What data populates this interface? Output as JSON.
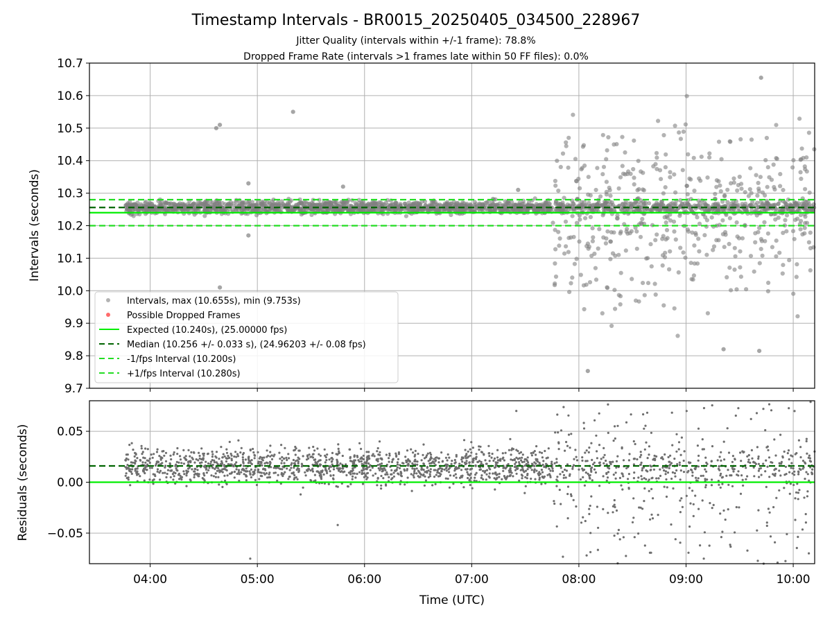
{
  "figure": {
    "title": "Timestamp Intervals - BR0015_20250405_034500_228967",
    "subtitle_1": "Jitter Quality (intervals within +/-1 frame): 78.8%",
    "subtitle_2": "Dropped Frame Rate (intervals >1 frames late within 50 FF files): 0.0%"
  },
  "colors": {
    "points": "#808080",
    "dropped": "#ff6b6b",
    "expected": "#00ee00",
    "median": "#006400",
    "fps_bound": "#22dd22",
    "grid": "#b0b0b0"
  },
  "chart_data": [
    {
      "type": "scatter",
      "panel": "top",
      "ylabel": "Intervals (seconds)",
      "xlim": [
        "03:26",
        "10:12"
      ],
      "ylim": [
        9.7,
        10.7
      ],
      "yticks": [
        "9.7",
        "9.8",
        "9.9",
        "10.0",
        "10.1",
        "10.2",
        "10.3",
        "10.4",
        "10.5",
        "10.6",
        "10.7"
      ],
      "grid": true,
      "legend_placement": "lower-left",
      "legend": [
        "Intervals, max (10.655s), min (9.753s)",
        "Possible Dropped Frames",
        "Expected (10.240s), (25.00000 fps)",
        "Median (10.256 +/- 0.033 s), (24.96203 +/- 0.08 fps)",
        "-1/fps Interval (10.200s)",
        "+1/fps Interval (10.280s)"
      ],
      "reference_lines": {
        "expected": 10.24,
        "median": 10.256,
        "minus_one_fps": 10.2,
        "plus_one_fps": 10.28
      },
      "series": [
        {
          "name": "Intervals, max (10.655s), min (9.753s)",
          "segments": [
            {
              "start": "03:46",
              "end": "07:45",
              "center": 10.256,
              "spread": 0.012,
              "count": 1400
            },
            {
              "start": "07:45",
              "end": "10:12",
              "center": 10.256,
              "spread": 0.012,
              "count": 520
            },
            {
              "start": "07:45",
              "end": "10:12",
              "center": 10.24,
              "spread": 0.17,
              "count": 480
            }
          ],
          "notable_points": [
            {
              "x": "04:37",
              "y": 10.5
            },
            {
              "x": "04:39",
              "y": 10.51
            },
            {
              "x": "04:39",
              "y": 10.01
            },
            {
              "x": "04:55",
              "y": 10.33
            },
            {
              "x": "04:55",
              "y": 10.17
            },
            {
              "x": "05:20",
              "y": 10.55
            },
            {
              "x": "05:48",
              "y": 10.32
            },
            {
              "x": "07:26",
              "y": 10.31
            },
            {
              "x": "08:05",
              "y": 9.753
            },
            {
              "x": "09:21",
              "y": 9.82
            },
            {
              "x": "09:42",
              "y": 10.655
            },
            {
              "x": "09:41",
              "y": 9.815
            }
          ]
        },
        {
          "name": "Possible Dropped Frames",
          "points": []
        }
      ]
    },
    {
      "type": "scatter",
      "panel": "bottom",
      "ylabel": "Residuals (seconds)",
      "xlabel": "Time (UTC)",
      "xlim": [
        "03:26",
        "10:12"
      ],
      "ylim": [
        -0.08,
        0.08
      ],
      "yticks": [
        "−0.05",
        "0.00",
        "0.05"
      ],
      "xticks": [
        "04:00",
        "05:00",
        "06:00",
        "07:00",
        "08:00",
        "09:00",
        "10:00"
      ],
      "grid": true,
      "reference_lines": {
        "expected": 0.0,
        "median": 0.016
      },
      "series": [
        {
          "segments": [
            {
              "start": "03:46",
              "end": "07:45",
              "center": 0.016,
              "spread": 0.011,
              "count": 1400
            },
            {
              "start": "07:45",
              "end": "10:12",
              "center": 0.016,
              "spread": 0.011,
              "count": 300
            },
            {
              "start": "07:45",
              "end": "10:12",
              "center": 0.0,
              "spread": 0.06,
              "count": 340
            }
          ],
          "notable_points": [
            {
              "x": "04:56",
              "y": -0.075
            },
            {
              "x": "05:45",
              "y": -0.042
            },
            {
              "x": "07:25",
              "y": 0.07
            }
          ]
        }
      ]
    }
  ]
}
